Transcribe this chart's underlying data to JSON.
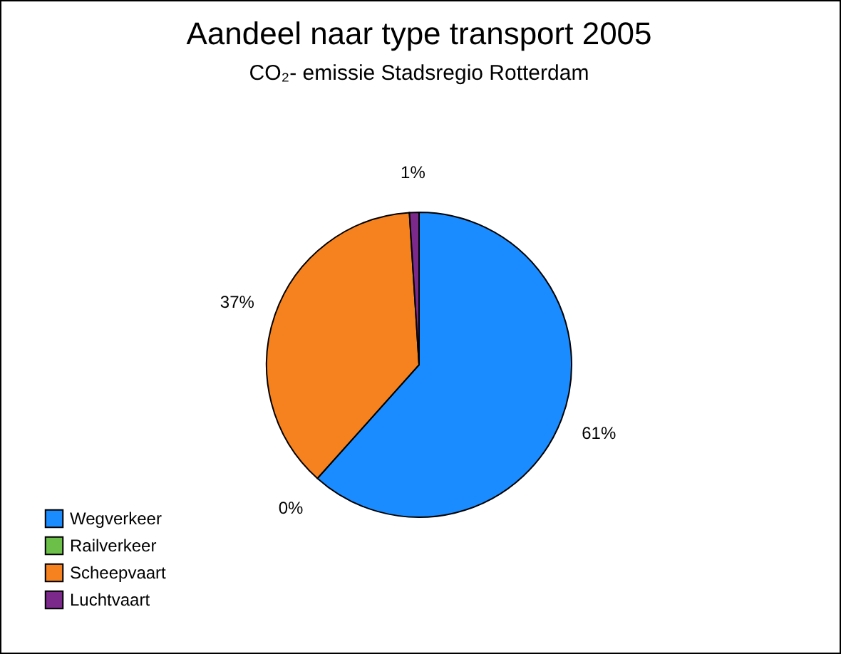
{
  "chart_data": {
    "type": "pie",
    "title": "Aandeel naar type transport 2005",
    "subtitle": "CO₂- emissie Stadsregio Rotterdam",
    "categories": [
      "Wegverkeer",
      "Railverkeer",
      "Scheepvaart",
      "Luchtvaart"
    ],
    "values": [
      61,
      0,
      37,
      1
    ],
    "colors": [
      "#1a8cff",
      "#6cc04a",
      "#f5821f",
      "#7b2a8c"
    ],
    "value_labels": [
      "61%",
      "0%",
      "37%",
      "1%"
    ],
    "legend": "bottom left"
  }
}
